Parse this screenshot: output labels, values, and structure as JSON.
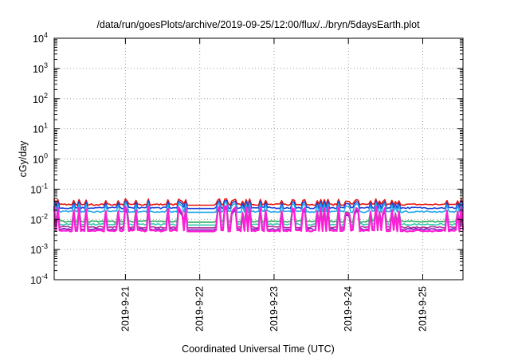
{
  "chart_data": {
    "type": "line",
    "title": "/data/run/goesPlots/archive/2019-09-25/12:00/flux/../bryn/5daysEarth.plot",
    "xlabel": "Coordinated Universal Time (UTC)",
    "ylabel": "cGy/day",
    "yscale": "log",
    "ylim": [
      0.0001,
      10000
    ],
    "xlim": [
      "2019-09-20 01:00",
      "2019-09-25 13:00"
    ],
    "x_ticks": [
      "2019-9-21",
      "2019-9-22",
      "2019-9-23",
      "2019-9-24",
      "2019-9-25"
    ],
    "y_ticks": [
      {
        "base": "10",
        "exp": "-4"
      },
      {
        "base": "10",
        "exp": "-3"
      },
      {
        "base": "10",
        "exp": "-2"
      },
      {
        "base": "10",
        "exp": "-1"
      },
      {
        "base": "10",
        "exp": "0"
      },
      {
        "base": "10",
        "exp": "1"
      },
      {
        "base": "10",
        "exp": "2"
      },
      {
        "base": "10",
        "exp": "3"
      },
      {
        "base": "10",
        "exp": "4"
      }
    ],
    "grid": true,
    "gap": [
      "2019-09-21 20:00",
      "2019-09-22 05:00"
    ],
    "series": [
      {
        "color": "#e8140c",
        "base": 0.031,
        "spike": 0.048
      },
      {
        "color": "#1a3fd6",
        "base": 0.024,
        "spike": 0.042
      },
      {
        "color": "#23a8e8",
        "base": 0.018,
        "spike": 0.036
      },
      {
        "color": "#1faa55",
        "base": 0.0085,
        "spike": 0.026
      },
      {
        "color": "#30c8b0",
        "base": 0.0068,
        "spike": 0.024
      },
      {
        "color": "#b0329c",
        "base": 0.0055,
        "spike": 0.024
      },
      {
        "color": "#7a1fbf",
        "base": 0.0047,
        "spike": 0.022
      },
      {
        "color": "#ff1ed8",
        "base": 0.0042,
        "spike": 0.028
      }
    ]
  }
}
